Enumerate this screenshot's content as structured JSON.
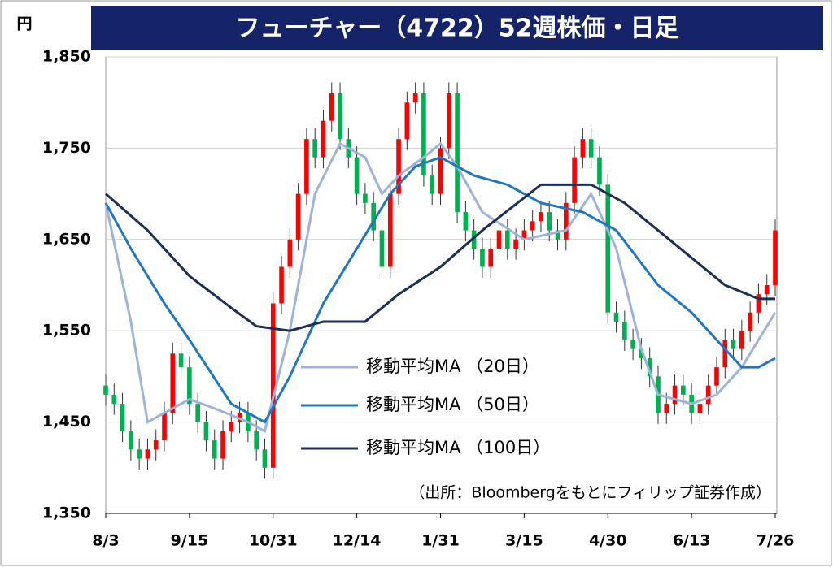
{
  "chart_data": {
    "type": "candlestick",
    "title": "フューチャー（4722）52週株価・日足",
    "y_unit": "円",
    "source": "（出所：Bloombergをもとにフィリップ証券作成）",
    "ylim": [
      1350,
      1850
    ],
    "yticks": [
      {
        "value": 1350,
        "label": "1,350"
      },
      {
        "value": 1450,
        "label": "1,450"
      },
      {
        "value": 1550,
        "label": "1,550"
      },
      {
        "value": 1650,
        "label": "1,650"
      },
      {
        "value": 1750,
        "label": "1,750"
      },
      {
        "value": 1850,
        "label": "1,850"
      }
    ],
    "xlim": [
      0,
      80
    ],
    "xticks": [
      {
        "value": 0,
        "label": "8/3"
      },
      {
        "value": 10,
        "label": "9/15"
      },
      {
        "value": 20,
        "label": "10/31"
      },
      {
        "value": 30,
        "label": "12/14"
      },
      {
        "value": 40,
        "label": "1/31"
      },
      {
        "value": 50,
        "label": "3/15"
      },
      {
        "value": 60,
        "label": "4/30"
      },
      {
        "value": 70,
        "label": "6/13"
      },
      {
        "value": 80,
        "label": "7/26"
      }
    ],
    "grid": true,
    "up_color": "#ff0000",
    "down_color": "#00b050",
    "open": [
      1490,
      1480,
      1470,
      1440,
      1420,
      1410,
      1420,
      1430,
      1460,
      1525,
      1510,
      1470,
      1450,
      1430,
      1410,
      1440,
      1450,
      1460,
      1440,
      1420,
      1400,
      1580,
      1620,
      1650,
      1700,
      1760,
      1740,
      1780,
      1810,
      1760,
      1740,
      1700,
      1690,
      1660,
      1620,
      1700,
      1760,
      1800,
      1810,
      1720,
      1700,
      1750,
      1810,
      1680,
      1660,
      1640,
      1620,
      1640,
      1660,
      1640,
      1650,
      1660,
      1670,
      1680,
      1660,
      1650,
      1690,
      1740,
      1760,
      1740,
      1710,
      1570,
      1560,
      1540,
      1530,
      1520,
      1500,
      1460,
      1470,
      1490,
      1480,
      1460,
      1470,
      1490,
      1510,
      1540,
      1530,
      1550,
      1570,
      1590,
      1600
    ],
    "high": [
      1502,
      1492,
      1482,
      1452,
      1432,
      1432,
      1442,
      1472,
      1537,
      1537,
      1522,
      1482,
      1462,
      1442,
      1452,
      1462,
      1472,
      1472,
      1452,
      1432,
      1592,
      1632,
      1662,
      1712,
      1772,
      1772,
      1792,
      1822,
      1822,
      1772,
      1752,
      1712,
      1702,
      1672,
      1712,
      1772,
      1812,
      1822,
      1822,
      1732,
      1762,
      1822,
      1822,
      1692,
      1672,
      1652,
      1652,
      1672,
      1672,
      1662,
      1672,
      1682,
      1692,
      1692,
      1672,
      1702,
      1752,
      1772,
      1772,
      1752,
      1722,
      1582,
      1572,
      1552,
      1542,
      1532,
      1512,
      1482,
      1502,
      1502,
      1492,
      1482,
      1502,
      1522,
      1552,
      1552,
      1562,
      1582,
      1602,
      1612,
      1672
    ],
    "low": [
      1468,
      1458,
      1428,
      1408,
      1398,
      1398,
      1408,
      1418,
      1448,
      1498,
      1458,
      1438,
      1418,
      1398,
      1398,
      1428,
      1438,
      1428,
      1408,
      1388,
      1388,
      1568,
      1608,
      1638,
      1688,
      1728,
      1728,
      1768,
      1748,
      1728,
      1688,
      1678,
      1648,
      1608,
      1608,
      1688,
      1748,
      1788,
      1708,
      1688,
      1688,
      1738,
      1668,
      1648,
      1628,
      1608,
      1608,
      1628,
      1628,
      1628,
      1638,
      1648,
      1658,
      1648,
      1638,
      1638,
      1678,
      1728,
      1728,
      1698,
      1558,
      1548,
      1528,
      1518,
      1508,
      1488,
      1448,
      1448,
      1458,
      1468,
      1448,
      1448,
      1458,
      1478,
      1498,
      1518,
      1518,
      1538,
      1558,
      1578,
      1588
    ],
    "close": [
      1480,
      1470,
      1440,
      1420,
      1410,
      1420,
      1430,
      1460,
      1525,
      1510,
      1470,
      1450,
      1430,
      1410,
      1440,
      1450,
      1460,
      1440,
      1420,
      1400,
      1580,
      1620,
      1650,
      1700,
      1760,
      1740,
      1780,
      1810,
      1760,
      1740,
      1700,
      1690,
      1660,
      1620,
      1700,
      1760,
      1800,
      1810,
      1720,
      1700,
      1750,
      1810,
      1680,
      1660,
      1640,
      1620,
      1640,
      1660,
      1640,
      1650,
      1660,
      1670,
      1680,
      1660,
      1650,
      1690,
      1740,
      1760,
      1740,
      1710,
      1570,
      1560,
      1540,
      1530,
      1520,
      1500,
      1460,
      1470,
      1490,
      1480,
      1460,
      1470,
      1490,
      1510,
      1540,
      1530,
      1550,
      1570,
      1590,
      1600,
      1660
    ],
    "series": [
      {
        "name": "移動平均MA （20日）",
        "color": "#9db3d9",
        "x": [
          0,
          3,
          5,
          7,
          10,
          13,
          17,
          19,
          22,
          25,
          28,
          31,
          33,
          35,
          38,
          40,
          42,
          45,
          50,
          55,
          58,
          61,
          64,
          66,
          70,
          73,
          76,
          80
        ],
        "values": [
          1690,
          1560,
          1450,
          1460,
          1475,
          1465,
          1450,
          1440,
          1550,
          1700,
          1755,
          1740,
          1700,
          1720,
          1740,
          1755,
          1730,
          1680,
          1650,
          1660,
          1700,
          1640,
          1530,
          1480,
          1470,
          1480,
          1510,
          1570
        ]
      },
      {
        "name": "移動平均MA （50日）",
        "color": "#1f77c4",
        "x": [
          0,
          3,
          7,
          10,
          15,
          19,
          22,
          26,
          30,
          34,
          37,
          40,
          44,
          48,
          52,
          57,
          61,
          66,
          70,
          75,
          76,
          78,
          80
        ],
        "values": [
          1690,
          1640,
          1580,
          1540,
          1470,
          1450,
          1500,
          1580,
          1640,
          1700,
          1730,
          1740,
          1720,
          1710,
          1690,
          1680,
          1660,
          1600,
          1570,
          1520,
          1510,
          1510,
          1520
        ]
      },
      {
        "name": "移動平均MA （100日）",
        "color": "#1b2f57",
        "x": [
          0,
          5,
          10,
          15,
          18,
          22,
          26,
          31,
          35,
          40,
          45,
          52,
          58,
          62,
          66,
          70,
          74,
          78,
          80
        ],
        "values": [
          1700,
          1660,
          1610,
          1575,
          1555,
          1550,
          1560,
          1560,
          1590,
          1620,
          1660,
          1710,
          1710,
          1690,
          1660,
          1630,
          1600,
          1585,
          1585
        ]
      }
    ]
  }
}
